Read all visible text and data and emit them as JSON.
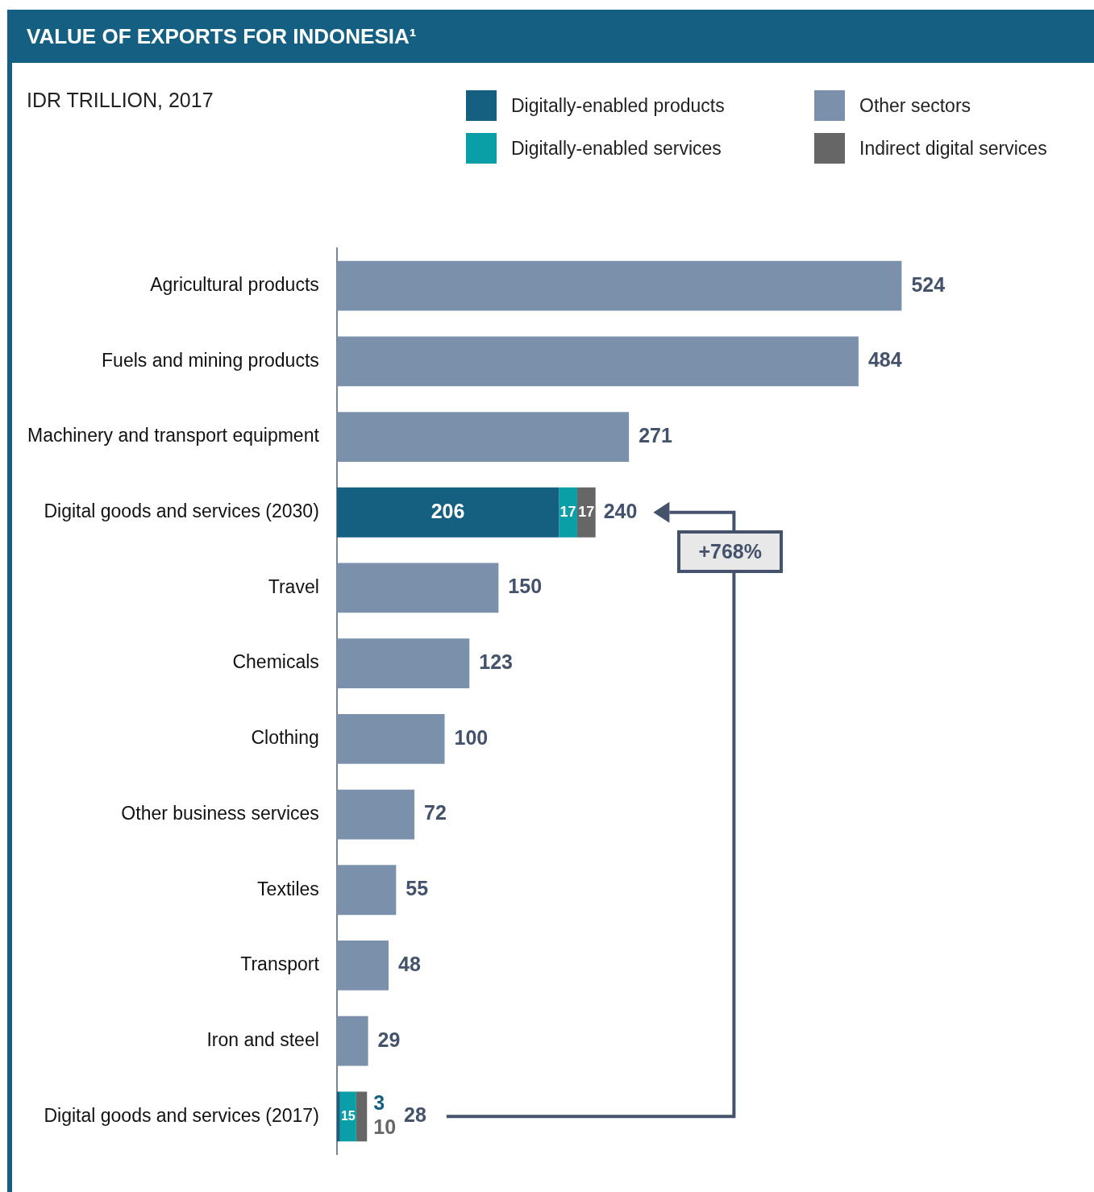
{
  "chart_data": {
    "type": "bar",
    "orientation": "horizontal",
    "stacked": true,
    "data_labels": true,
    "title": "VALUE OF EXPORTS FOR INDONESIA¹",
    "subtitle": "IDR TRILLION, 2017",
    "legend": "top right",
    "grid": false,
    "categories": [
      "Agricultural products",
      "Fuels and mining products",
      "Machinery and transport equipment",
      "Digital goods and services (2030)",
      "Travel",
      "Chemicals",
      "Clothing",
      "Other business services",
      "Textiles",
      "Transport",
      "Iron and steel",
      "Digital goods and services (2017)"
    ],
    "series": [
      {
        "name": "Digitally-enabled products",
        "color": "#155f80",
        "values": [
          null,
          null,
          null,
          206,
          null,
          null,
          null,
          null,
          null,
          null,
          null,
          3
        ]
      },
      {
        "name": "Digitally-enabled services",
        "color": "#0a9ea6",
        "values": [
          null,
          null,
          null,
          17,
          null,
          null,
          null,
          null,
          null,
          null,
          null,
          15
        ]
      },
      {
        "name": "Other sectors",
        "color": "#7b91ab",
        "values": [
          524,
          484,
          271,
          null,
          150,
          123,
          100,
          72,
          55,
          48,
          29,
          null
        ]
      },
      {
        "name": "Indirect digital services",
        "color": "#666666",
        "values": [
          null,
          null,
          null,
          17,
          null,
          null,
          null,
          null,
          null,
          null,
          null,
          10
        ]
      }
    ],
    "totals": [
      null,
      null,
      null,
      "240",
      null,
      null,
      null,
      null,
      null,
      null,
      null,
      "28"
    ],
    "annotations": [
      "+768%"
    ]
  }
}
